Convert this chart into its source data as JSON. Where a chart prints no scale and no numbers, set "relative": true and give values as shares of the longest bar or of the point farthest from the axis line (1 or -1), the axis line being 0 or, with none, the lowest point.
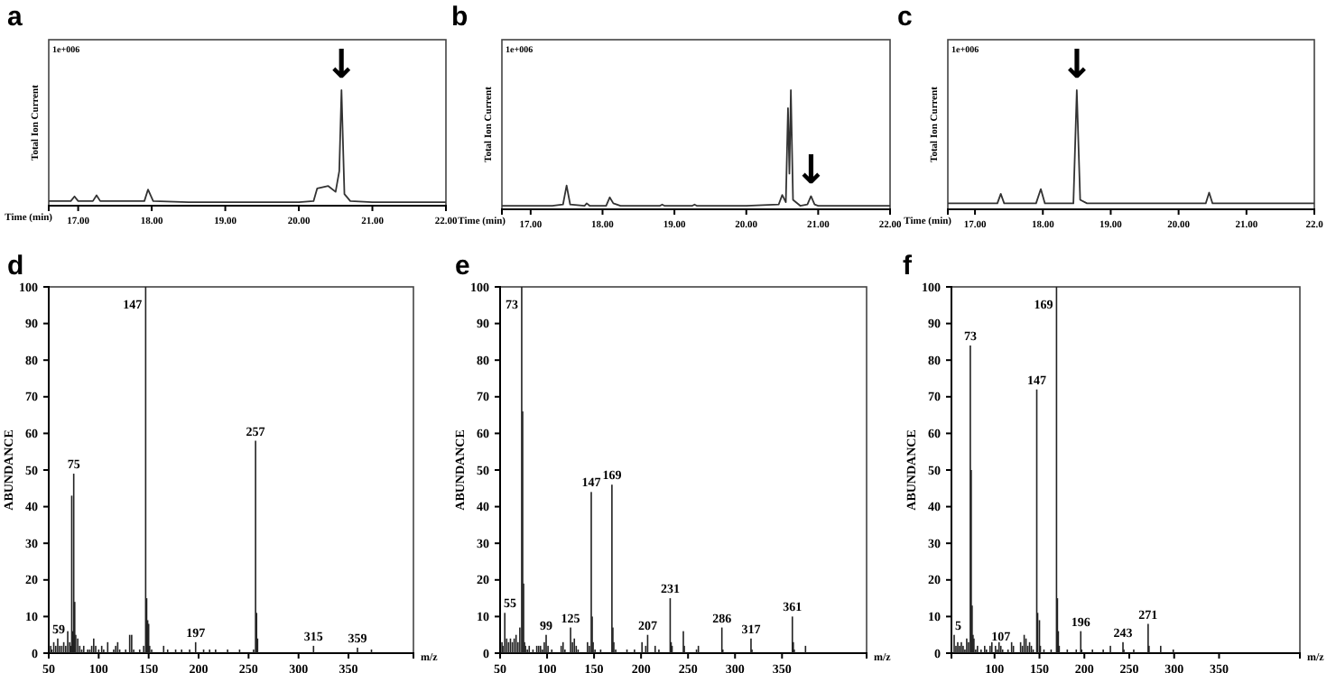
{
  "chart_data": [
    {
      "type": "line",
      "title": "a",
      "xlabel": "Time (min)",
      "ylabel": "Total Ion Current",
      "relative": true,
      "xlim": [
        16.6,
        22.0
      ],
      "xticks": [
        {
          "value": 17,
          "label": "17.00"
        },
        {
          "value": 18,
          "label": "18.00"
        },
        {
          "value": 19,
          "label": "19.00"
        },
        {
          "value": 20,
          "label": "20.00"
        },
        {
          "value": 21,
          "label": "21.00"
        },
        {
          "value": 22,
          "label": "22.00"
        }
      ],
      "x": [
        16.6,
        16.9,
        16.95,
        17.0,
        17.2,
        17.25,
        17.3,
        17.9,
        17.95,
        18.02,
        18.5,
        19.0,
        19.5,
        20.0,
        20.2,
        20.25,
        20.4,
        20.5,
        20.55,
        20.58,
        20.62,
        20.7,
        21.0,
        21.5,
        22.0
      ],
      "series": [
        {
          "color": "#333333",
          "values": [
            0.04,
            0.04,
            0.08,
            0.04,
            0.04,
            0.09,
            0.04,
            0.04,
            0.14,
            0.04,
            0.03,
            0.03,
            0.03,
            0.03,
            0.04,
            0.15,
            0.17,
            0.12,
            0.3,
            1,
            0.1,
            0.04,
            0.03,
            0.03,
            0.03
          ]
        }
      ],
      "annotations": [
        "1e+006",
        {
          "text": "↓",
          "x": 20.58,
          "y": 1
        }
      ]
    },
    {
      "type": "line",
      "title": "b",
      "xlabel": "Time (min)",
      "ylabel": "Total Ion Current",
      "relative": true,
      "xlim": [
        16.6,
        22.0
      ],
      "xticks": [
        {
          "value": 17,
          "label": "17.00"
        },
        {
          "value": 18,
          "label": "18.00"
        },
        {
          "value": 19,
          "label": "19.00"
        },
        {
          "value": 20,
          "label": "20.00"
        },
        {
          "value": 21,
          "label": "21.00"
        },
        {
          "value": 22,
          "label": "22.00"
        }
      ],
      "x": [
        16.6,
        17.0,
        17.3,
        17.45,
        17.5,
        17.55,
        17.75,
        17.78,
        17.82,
        18.05,
        18.1,
        18.15,
        18.25,
        18.8,
        18.83,
        18.86,
        19.25,
        19.28,
        19.31,
        20.0,
        20.45,
        20.5,
        20.55,
        20.58,
        20.6,
        20.62,
        20.65,
        20.75,
        20.85,
        20.9,
        20.95,
        21.0,
        21.5,
        22.0
      ],
      "series": [
        {
          "color": "#333333",
          "values": [
            0.03,
            0.03,
            0.03,
            0.04,
            0.2,
            0.04,
            0.03,
            0.05,
            0.03,
            0.03,
            0.1,
            0.05,
            0.03,
            0.03,
            0.04,
            0.03,
            0.03,
            0.04,
            0.03,
            0.03,
            0.04,
            0.12,
            0.06,
            0.85,
            0.3,
            1,
            0.08,
            0.03,
            0.04,
            0.11,
            0.04,
            0.03,
            0.03,
            0.03
          ]
        }
      ],
      "annotations": [
        "1e+006",
        {
          "text": "↓",
          "x": 20.9,
          "y": 0.11
        }
      ]
    },
    {
      "type": "line",
      "title": "c",
      "xlabel": "Time (min)",
      "ylabel": "Total Ion Current",
      "relative": true,
      "xlim": [
        16.6,
        22.0
      ],
      "xticks": [
        {
          "value": 17,
          "label": "17.00"
        },
        {
          "value": 18,
          "label": "18.00"
        },
        {
          "value": 19,
          "label": "19.00"
        },
        {
          "value": 20,
          "label": "20.00"
        },
        {
          "value": 21,
          "label": "21.00"
        },
        {
          "value": 22,
          "label": "22.0"
        }
      ],
      "x": [
        16.6,
        17.0,
        17.33,
        17.38,
        17.43,
        17.9,
        17.97,
        18.03,
        18.45,
        18.5,
        18.55,
        18.65,
        19.5,
        20.4,
        20.45,
        20.5,
        21.0,
        22.0
      ],
      "series": [
        {
          "color": "#333333",
          "values": [
            0.05,
            0.05,
            0.05,
            0.13,
            0.05,
            0.05,
            0.17,
            0.05,
            0.05,
            1,
            0.08,
            0.05,
            0.05,
            0.05,
            0.14,
            0.05,
            0.05,
            0.05
          ]
        }
      ],
      "annotations": [
        "1e+006",
        {
          "text": "↓",
          "x": 18.5,
          "y": 1
        }
      ]
    },
    {
      "type": "bar",
      "title": "d",
      "xlabel": "m/z",
      "ylabel": "ABUNDANCE",
      "xlim": [
        50,
        415
      ],
      "xticks": [
        50,
        100,
        150,
        200,
        250,
        300,
        350
      ],
      "ylim": [
        0,
        100
      ],
      "yticks": [
        0,
        10,
        20,
        30,
        40,
        50,
        60,
        70,
        80,
        90,
        100
      ],
      "x": [
        52,
        53,
        55,
        57,
        59,
        61,
        63,
        65,
        67,
        69,
        71,
        72,
        73,
        74,
        75,
        76,
        77,
        79,
        81,
        83,
        85,
        89,
        91,
        93,
        95,
        97,
        100,
        103,
        105,
        109,
        115,
        117,
        119,
        121,
        127,
        131,
        133,
        135,
        141,
        145,
        147,
        148,
        149,
        150,
        151,
        153,
        165,
        169,
        177,
        183,
        191,
        197,
        205,
        211,
        217,
        229,
        241,
        255,
        257,
        258,
        259,
        315,
        359,
        373
      ],
      "series": [
        {
          "color": "#222222",
          "values": [
            2,
            1,
            3,
            2,
            4,
            2,
            2,
            3,
            2,
            6,
            3,
            2,
            43,
            6,
            49,
            14,
            5,
            4,
            2,
            1,
            2,
            1,
            1,
            2,
            4,
            2,
            1,
            2,
            1,
            3,
            1,
            2,
            3,
            1,
            1,
            5,
            5,
            1,
            1,
            2,
            100,
            15,
            9,
            8,
            2,
            1,
            2,
            1,
            1,
            1,
            1,
            3,
            1,
            1,
            1,
            1,
            1,
            1,
            58,
            11,
            4,
            2,
            1.5,
            1
          ]
        }
      ],
      "annotations": [
        {
          "text": "147",
          "x": 147,
          "y": 100
        },
        {
          "text": "75",
          "x": 75,
          "y": 49
        },
        {
          "text": "59",
          "x": 59,
          "y": 4
        },
        {
          "text": "257",
          "x": 257,
          "y": 58
        },
        {
          "text": "197",
          "x": 197,
          "y": 3
        },
        {
          "text": "315",
          "x": 315,
          "y": 2
        },
        {
          "text": "359",
          "x": 359,
          "y": 1.5
        }
      ]
    },
    {
      "type": "bar",
      "title": "e",
      "xlabel": "m/z",
      "ylabel": "ABUNDANCE",
      "xlim": [
        50,
        440
      ],
      "xticks": [
        50,
        100,
        150,
        200,
        250,
        300,
        350
      ],
      "ylim": [
        0,
        100
      ],
      "yticks": [
        0,
        10,
        20,
        30,
        40,
        50,
        60,
        70,
        80,
        90,
        100
      ],
      "x": [
        52,
        53,
        55,
        57,
        59,
        61,
        63,
        65,
        67,
        69,
        71,
        73,
        74,
        75,
        76,
        77,
        79,
        81,
        85,
        89,
        91,
        93,
        95,
        97,
        99,
        101,
        105,
        115,
        117,
        119,
        125,
        127,
        129,
        131,
        133,
        143,
        145,
        147,
        148,
        149,
        151,
        157,
        169,
        170,
        171,
        173,
        185,
        193,
        201,
        205,
        207,
        215,
        219,
        231,
        232,
        233,
        245,
        246,
        259,
        261,
        286,
        287,
        317,
        318,
        361,
        362,
        363,
        375
      ],
      "series": [
        {
          "color": "#222222",
          "values": [
            3,
            2,
            11,
            4,
            3,
            4,
            3,
            4,
            5,
            3,
            7,
            100,
            66,
            19,
            3,
            2,
            1,
            2,
            1,
            2,
            2,
            2,
            1,
            3,
            5,
            2,
            1,
            2,
            3,
            1,
            7,
            3,
            4,
            2,
            1,
            3,
            2,
            44,
            10,
            3,
            1,
            1,
            46,
            7,
            3,
            1,
            1,
            1,
            3,
            2,
            5,
            2,
            1,
            15,
            3,
            2,
            6,
            2,
            1,
            2,
            7,
            1,
            4,
            1,
            10,
            3,
            1,
            2
          ]
        }
      ],
      "annotations": [
        {
          "text": "55",
          "x": 55,
          "y": 11
        },
        {
          "text": "73",
          "x": 73,
          "y": 100
        },
        {
          "text": "99",
          "x": 99,
          "y": 5
        },
        {
          "text": "125",
          "x": 125,
          "y": 7
        },
        {
          "text": "147",
          "x": 147,
          "y": 44
        },
        {
          "text": "169",
          "x": 169,
          "y": 46
        },
        {
          "text": "207",
          "x": 207,
          "y": 5
        },
        {
          "text": "231",
          "x": 231,
          "y": 15
        },
        {
          "text": "286",
          "x": 286,
          "y": 7
        },
        {
          "text": "317",
          "x": 317,
          "y": 4
        },
        {
          "text": "361",
          "x": 361,
          "y": 10
        }
      ]
    },
    {
      "type": "bar",
      "title": "f",
      "xlabel": "m/z",
      "ylabel": "ABUNDANCE",
      "xlim": [
        52,
        440
      ],
      "xticks": [
        100,
        150,
        200,
        250,
        300,
        350
      ],
      "ylim": [
        0,
        100
      ],
      "yticks": [
        0,
        10,
        20,
        30,
        40,
        50,
        60,
        70,
        80,
        90,
        100
      ],
      "x": [
        55,
        57,
        59,
        61,
        63,
        65,
        67,
        69,
        71,
        73,
        74,
        75,
        76,
        77,
        79,
        81,
        85,
        89,
        91,
        95,
        97,
        101,
        103,
        105,
        107,
        109,
        115,
        119,
        121,
        129,
        131,
        133,
        135,
        137,
        139,
        141,
        143,
        147,
        148,
        150,
        151,
        155,
        163,
        169,
        170,
        171,
        172,
        181,
        191,
        196,
        197,
        209,
        221,
        229,
        243,
        244,
        255,
        271,
        272,
        285,
        299
      ],
      "series": [
        {
          "color": "#222222",
          "values": [
            5,
            2,
            3,
            2,
            3,
            2,
            1,
            4,
            3,
            84,
            50,
            13,
            5,
            4,
            1,
            2,
            1,
            2,
            1,
            2,
            3,
            2,
            1,
            3,
            2,
            1,
            1,
            3,
            2,
            3,
            2,
            5,
            4,
            2,
            3,
            2,
            1,
            72,
            11,
            9,
            2,
            1,
            1,
            100,
            15,
            6,
            2,
            1,
            1,
            6,
            1,
            1,
            1,
            2,
            3,
            1,
            1,
            8,
            2,
            2,
            1
          ]
        }
      ],
      "annotations": [
        {
          "text": "5",
          "x": 55,
          "y": 5
        },
        {
          "text": "73",
          "x": 73,
          "y": 84
        },
        {
          "text": "169",
          "x": 169,
          "y": 100
        },
        {
          "text": "147",
          "x": 147,
          "y": 72
        },
        {
          "text": "107",
          "x": 107,
          "y": 2
        },
        {
          "text": "196",
          "x": 196,
          "y": 6
        },
        {
          "text": "243",
          "x": 243,
          "y": 3
        },
        {
          "text": "271",
          "x": 271,
          "y": 8
        }
      ]
    }
  ]
}
